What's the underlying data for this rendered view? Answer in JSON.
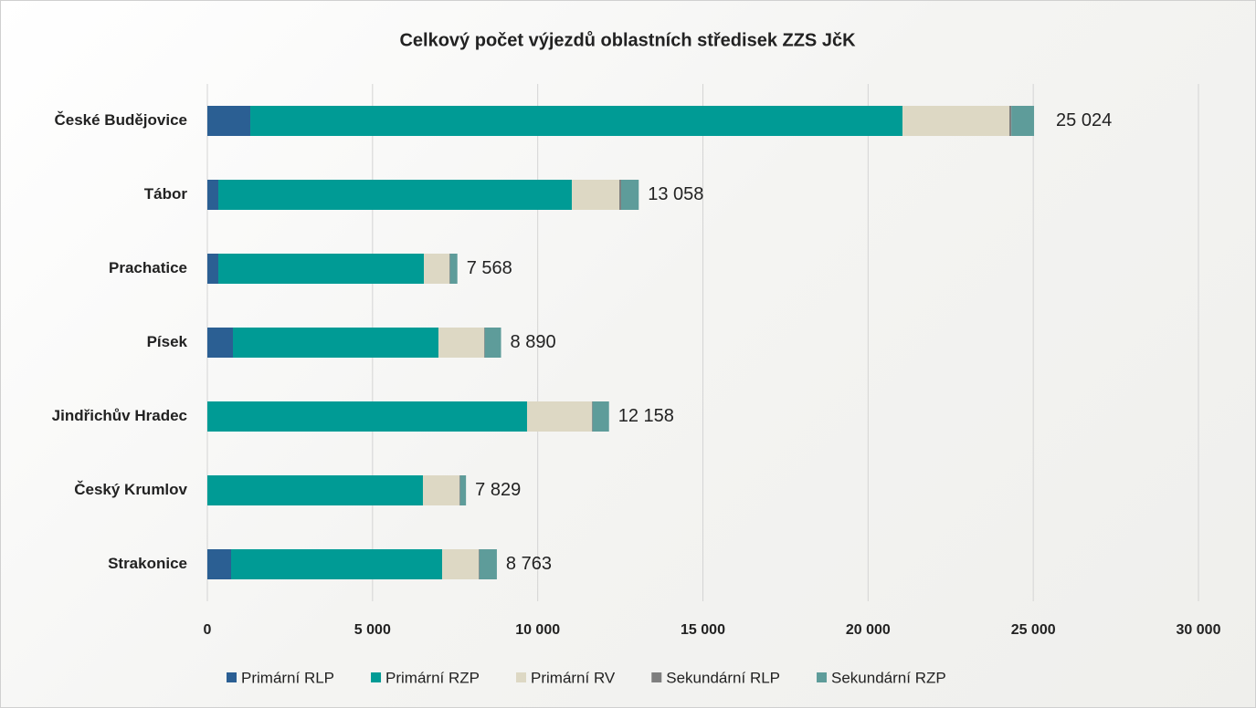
{
  "chart_data": {
    "type": "stacked_bar_horizontal",
    "title": "Celkový počet výjezdů oblastních středisek ZZS JčK",
    "categories": [
      "České Budějovice",
      "Tábor",
      "Prachatice",
      "Písek",
      "Jindřichův Hradec",
      "Český Krumlov",
      "Strakonice"
    ],
    "series": [
      {
        "name": "Primární RLP",
        "color": "#2b5f93",
        "values": [
          1300,
          332,
          332,
          774,
          0,
          0,
          719
        ]
      },
      {
        "name": "Primární RZP",
        "color": "#009b95",
        "values": [
          19741,
          10700,
          6221,
          6221,
          9677,
          6525,
          6387
        ]
      },
      {
        "name": "Primární RV",
        "color": "#ddd8c4",
        "values": [
          3235,
          1438,
          774,
          1383,
          1963,
          1106,
          1106
        ]
      },
      {
        "name": "Sekundární RLP",
        "color": "#7f7f7f",
        "values": [
          60,
          55,
          20,
          20,
          20,
          20,
          20
        ]
      },
      {
        "name": "Sekundární RZP",
        "color": "#5e9c9a",
        "values": [
          688,
          533,
          221,
          492,
          498,
          178,
          531
        ]
      }
    ],
    "totals": [
      25024,
      13058,
      7568,
      8890,
      12158,
      7829,
      8763
    ],
    "total_labels": [
      "25 024",
      "13 058",
      "7 568",
      "8 890",
      "12 158",
      "7 829",
      "8 763"
    ],
    "xlim": [
      0,
      30000
    ],
    "xticks": [
      0,
      {
        "value": 5000,
        "label": "5 000"
      },
      {
        "value": 10000,
        "label": "10 000"
      },
      {
        "value": 15000,
        "label": "15 000"
      },
      {
        "value": 20000,
        "label": "20 000"
      },
      {
        "value": 25000,
        "label": "25 000"
      },
      {
        "value": 30000,
        "label": "30 000"
      }
    ],
    "grid": true,
    "legend": "bottom"
  }
}
